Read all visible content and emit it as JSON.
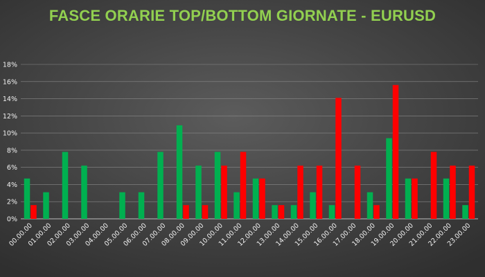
{
  "chart_data": {
    "type": "bar",
    "title": "FASCE ORARIE TOP/BOTTOM GIORNATE - EURUSD",
    "xlabel": "",
    "ylabel": "",
    "ylim": [
      0,
      18
    ],
    "yticks": [
      "0%",
      "2%",
      "4%",
      "6%",
      "8%",
      "10%",
      "12%",
      "14%",
      "16%",
      "18%"
    ],
    "categories": [
      "00.00.00",
      "01.00.00",
      "02.00.00",
      "03.00.00",
      "04.00.00",
      "05.00.00",
      "06.00.00",
      "07.00.00",
      "08.00.00",
      "09.00.00",
      "10.00.00",
      "11.00.00",
      "12.00.00",
      "13.00.00",
      "14.00.00",
      "15.00.00",
      "16.00.00",
      "17.00.00",
      "18.00.00",
      "19.00.00",
      "20.00.00",
      "21.00.00",
      "22.00.00",
      "23.00.00"
    ],
    "series": [
      {
        "color": "#00b050",
        "values": [
          4.7,
          3.1,
          7.8,
          6.2,
          0,
          3.1,
          3.1,
          7.8,
          10.9,
          6.2,
          7.8,
          3.1,
          4.7,
          1.6,
          1.6,
          3.1,
          1.6,
          0,
          3.1,
          9.4,
          4.7,
          0,
          4.7,
          1.6
        ]
      },
      {
        "color": "#ff0000",
        "values": [
          1.6,
          0,
          0,
          0,
          0,
          0,
          0,
          0,
          1.6,
          1.6,
          6.2,
          7.8,
          4.7,
          1.6,
          6.2,
          6.2,
          14.1,
          6.2,
          1.6,
          15.6,
          4.7,
          7.8,
          6.2,
          6.2
        ]
      }
    ],
    "grid": true,
    "legend": "none"
  }
}
